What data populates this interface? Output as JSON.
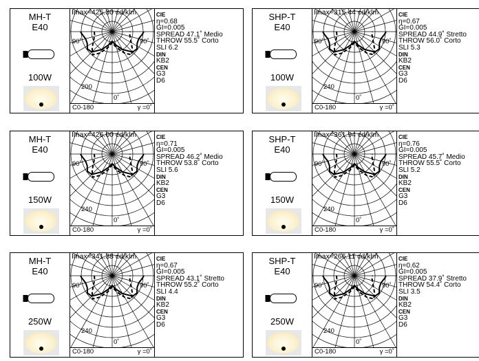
{
  "cards": [
    {
      "type": "MH-T",
      "base": "E40",
      "watt": "100W",
      "imax": "Imax=425.30  cd/klm",
      "ring": "200",
      "eta": "η=0.68",
      "gi": "GI=0.005",
      "spread": "SPREAD 47.1˚ Medio",
      "throw": "THROW 55.5˚ Corto",
      "sli": "SLI 6.2",
      "kb": "KB2",
      "g": "G3",
      "d": "D6"
    },
    {
      "type": "SHP-T",
      "base": "E40",
      "watt": "100W",
      "imax": "Imax=315.44  cd/klm",
      "ring": "240",
      "eta": "η=0.67",
      "gi": "GI=0.005",
      "spread": "SPREAD 44.9˚ Stretto",
      "throw": "THROW 56.0˚ Corto",
      "sli": "SLI 5.3",
      "kb": "KB2",
      "g": "G3",
      "d": "D6"
    },
    {
      "type": "MH-T",
      "base": "E40",
      "watt": "150W",
      "imax": "Imax=426.00  cd/klm",
      "ring": "240",
      "eta": "η=0.71",
      "gi": "GI=0.005",
      "spread": "SPREAD 46.2˚ Medio",
      "throw": "THROW 53.8˚ Corto",
      "sli": "SLI 5.6",
      "kb": "KB2",
      "g": "G3",
      "d": "D6"
    },
    {
      "type": "SHP-T",
      "base": "E40",
      "watt": "150W",
      "imax": "Imax=361.94  cd/klm",
      "ring": "240",
      "eta": "η=0.76",
      "gi": "GI=0.005",
      "spread": "SPREAD 45.7˚ Medio",
      "throw": "THROW 55.5˚ Corto",
      "sli": "SLI 5.2",
      "kb": "KB2",
      "g": "G3",
      "d": "D6"
    },
    {
      "type": "MH-T",
      "base": "E40",
      "watt": "250W",
      "imax": "Imax=341.38  cd/klm",
      "ring": "240",
      "eta": "η=0.67",
      "gi": "GI=0.005",
      "spread": "SPREAD 43.1˚ Stretto",
      "throw": "THROW 55.2˚ Corto",
      "sli": "SLI 4.4",
      "kb": "KB2",
      "g": "G3",
      "d": "D6"
    },
    {
      "type": "SHP-T",
      "base": "E40",
      "watt": "250W",
      "imax": "Imax=266.11  cd/klm",
      "ring": "240",
      "eta": "η=0.62",
      "gi": "GI=0.005",
      "spread": "SPREAD 37.9˚ Stretto",
      "throw": "THROW 54.4˚ Corto",
      "sli": "SLI 3.5",
      "kb": "KB2",
      "g": "G3",
      "d": "D6"
    }
  ],
  "common": {
    "cie": "CIE",
    "din": "DIN",
    "cen": "CEN",
    "c0": "C0-180",
    "gamma": "γ =0˚",
    "ang_left": "90˚",
    "ang_right": "90˚",
    "ang_bottom": "0˚"
  }
}
